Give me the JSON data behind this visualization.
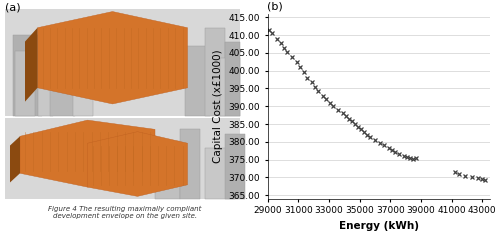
{
  "title_a": "(a)",
  "title_b": "(b)",
  "xlabel": "Energy (kWh)",
  "ylabel": "Capital Cost (x£1000)",
  "xlim": [
    29000,
    43500
  ],
  "ylim": [
    364,
    416
  ],
  "xticks": [
    29000,
    31000,
    33000,
    35000,
    37000,
    39000,
    41000,
    43000
  ],
  "yticks": [
    365.0,
    370.0,
    375.0,
    380.0,
    385.0,
    390.0,
    395.0,
    400.0,
    405.0,
    410.0,
    415.0
  ],
  "data_x": [
    29100,
    29300,
    29600,
    29900,
    30100,
    30300,
    30600,
    30900,
    31100,
    31400,
    31600,
    31900,
    32100,
    32300,
    32600,
    32800,
    33100,
    33300,
    33600,
    33900,
    34100,
    34300,
    34500,
    34700,
    34900,
    35100,
    35300,
    35500,
    35700,
    36000,
    36300,
    36600,
    36900,
    37100,
    37300,
    37600,
    37900,
    38100,
    38300,
    38500,
    38700,
    41200,
    41500,
    41900,
    42300,
    42700,
    43000,
    43200
  ],
  "data_y": [
    411.5,
    410.5,
    409.0,
    407.8,
    406.5,
    405.2,
    403.8,
    402.5,
    401.0,
    399.5,
    398.0,
    396.8,
    395.5,
    394.2,
    393.0,
    392.0,
    391.0,
    390.0,
    389.0,
    388.0,
    387.2,
    386.5,
    385.8,
    385.0,
    384.2,
    383.5,
    382.8,
    382.0,
    381.3,
    380.5,
    379.8,
    379.0,
    378.3,
    377.8,
    377.2,
    376.5,
    376.0,
    375.7,
    375.4,
    375.1,
    375.5,
    371.5,
    371.0,
    370.5,
    370.2,
    369.8,
    369.5,
    369.2
  ],
  "marker_color": "#404040",
  "bg_color": "#ffffff",
  "grid_color": "#d0d0d0",
  "panel_bg": "#e8e8e8",
  "building_orange": "#d4742a",
  "building_dark": "#8b4a10",
  "city_light": "#c8c8c8",
  "city_mid": "#a0a0a0",
  "caption": "Figure 4 The resulting maximally compliant\ndevelopment envelope on the given site.",
  "label_fontsize": 7.5,
  "tick_fontsize": 6.5,
  "title_fontsize": 8,
  "caption_fontsize": 5.0
}
